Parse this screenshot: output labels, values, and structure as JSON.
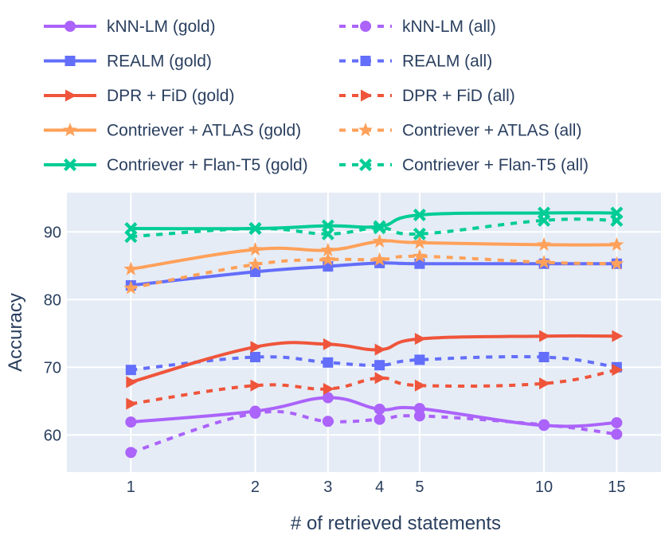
{
  "chart_data": {
    "type": "line",
    "title": "",
    "xlabel": "# of retrieved statements",
    "ylabel": "Accuracy",
    "x": [
      1,
      2,
      3,
      4,
      5,
      10,
      15
    ],
    "x_tick_labels": [
      "1",
      "2",
      "3",
      "4",
      "5",
      "10",
      "15"
    ],
    "y_ticks": [
      60,
      70,
      80,
      90
    ],
    "x_scale": "log",
    "ylim": [
      54.5,
      95.8
    ],
    "grid": true,
    "legend_position": "top",
    "background": "#e5ecf6",
    "series": [
      {
        "name": "kNN-LM (gold)",
        "color": "#ab63fa",
        "dash": "solid",
        "marker": "circle",
        "values": [
          61.9,
          63.5,
          65.5,
          63.8,
          63.9,
          61.4,
          61.8
        ]
      },
      {
        "name": "kNN-LM (all)",
        "color": "#ab63fa",
        "dash": "dot",
        "marker": "circle",
        "values": [
          57.4,
          63.2,
          62.0,
          62.3,
          62.8,
          61.5,
          60.1
        ]
      },
      {
        "name": "REALM (gold)",
        "color": "#636efa",
        "dash": "solid",
        "marker": "square",
        "values": [
          82.1,
          84.1,
          84.9,
          85.4,
          85.3,
          85.3,
          85.3
        ]
      },
      {
        "name": "REALM (all)",
        "color": "#636efa",
        "dash": "dot",
        "marker": "square",
        "values": [
          69.6,
          71.5,
          70.7,
          70.3,
          71.1,
          71.5,
          70.0
        ]
      },
      {
        "name": "DPR + FiD (gold)",
        "color": "#ef553b",
        "dash": "solid",
        "marker": "triangle-right",
        "values": [
          67.8,
          73.0,
          73.4,
          72.6,
          74.2,
          74.6,
          74.6
        ]
      },
      {
        "name": "DPR + FiD (all)",
        "color": "#ef553b",
        "dash": "dot",
        "marker": "triangle-right",
        "values": [
          64.6,
          67.3,
          66.8,
          68.4,
          67.3,
          67.6,
          69.6
        ]
      },
      {
        "name": "Contriever + ATLAS (gold)",
        "color": "#ffa15a",
        "dash": "solid",
        "marker": "star",
        "values": [
          84.5,
          87.4,
          87.3,
          88.6,
          88.4,
          88.1,
          88.1
        ]
      },
      {
        "name": "Contriever + ATLAS (all)",
        "color": "#ffa15a",
        "dash": "dot",
        "marker": "star",
        "values": [
          81.7,
          85.2,
          85.9,
          85.9,
          86.4,
          85.5,
          85.3
        ]
      },
      {
        "name": "Contriever + Flan-T5 (gold)",
        "color": "#00cc96",
        "dash": "solid",
        "marker": "x",
        "values": [
          90.5,
          90.5,
          90.9,
          90.8,
          92.5,
          92.8,
          92.8
        ]
      },
      {
        "name": "Contriever + Flan-T5 (all)",
        "color": "#00cc96",
        "dash": "dot",
        "marker": "x",
        "values": [
          89.3,
          90.5,
          89.7,
          90.6,
          89.7,
          91.7,
          91.7
        ]
      }
    ]
  }
}
